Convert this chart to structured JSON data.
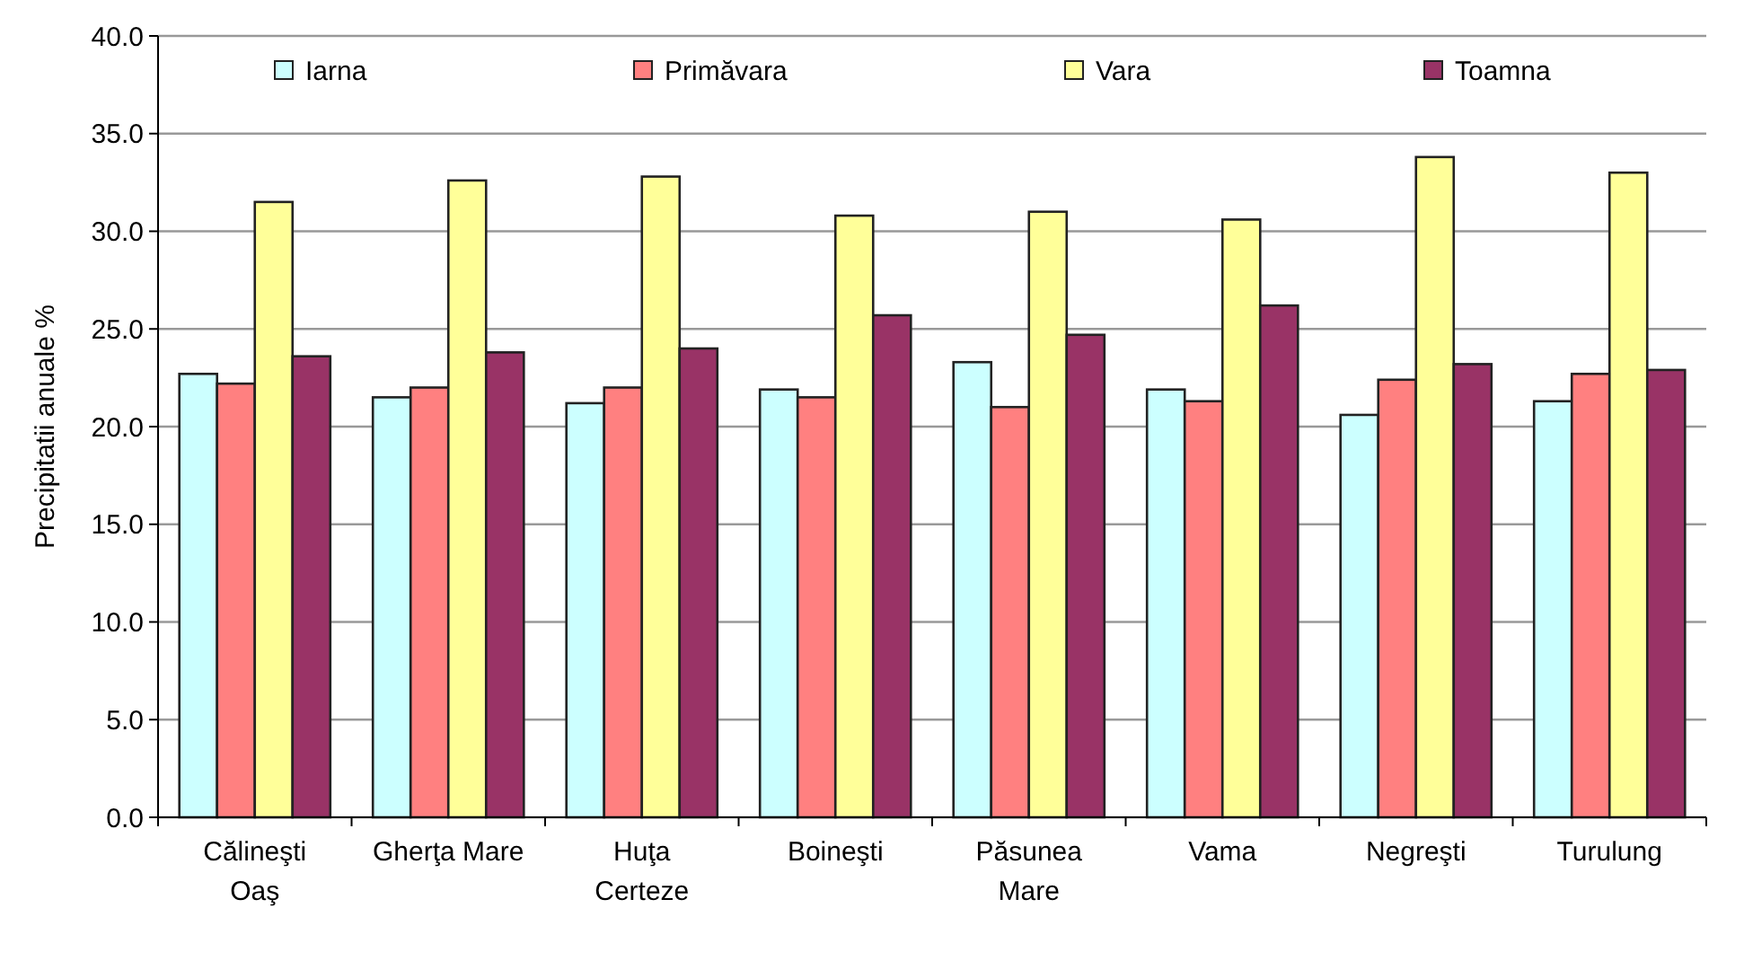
{
  "chart_data": {
    "type": "bar",
    "ylabel": "Precipitatii anuale %",
    "categories": [
      "Călineşti\nOaş",
      "Gherţa Mare",
      "Huţa\nCerteze",
      "Boineşti",
      "Păsunea\nMare",
      "Vama",
      "Negreşti",
      "Turulung"
    ],
    "series": [
      {
        "name": "Iarna",
        "color": "#ccffff",
        "values": [
          22.7,
          21.5,
          21.2,
          21.9,
          23.3,
          21.9,
          20.6,
          21.3
        ]
      },
      {
        "name": "Primăvara",
        "color": "#ff8080",
        "values": [
          22.2,
          22.0,
          22.0,
          21.5,
          21.0,
          21.3,
          22.4,
          22.7
        ]
      },
      {
        "name": "Vara",
        "color": "#ffff99",
        "values": [
          31.5,
          32.6,
          32.8,
          30.8,
          31.0,
          30.6,
          33.8,
          33.0
        ]
      },
      {
        "name": "Toamna",
        "color": "#993366",
        "values": [
          23.6,
          23.8,
          24.0,
          25.7,
          24.7,
          26.2,
          23.2,
          22.9
        ]
      }
    ],
    "ylim": [
      0,
      40
    ],
    "yticks": [
      {
        "value": 0,
        "label": "0.0"
      },
      {
        "value": 5,
        "label": "5.0"
      },
      {
        "value": 10,
        "label": "10.0"
      },
      {
        "value": 15,
        "label": "15.0"
      },
      {
        "value": 20,
        "label": "20.0"
      },
      {
        "value": 25,
        "label": "25.0"
      },
      {
        "value": 30,
        "label": "30.0"
      },
      {
        "value": 35,
        "label": "35.0"
      },
      {
        "value": 40,
        "label": "40.0"
      }
    ],
    "grid": "y",
    "legend": "top"
  }
}
